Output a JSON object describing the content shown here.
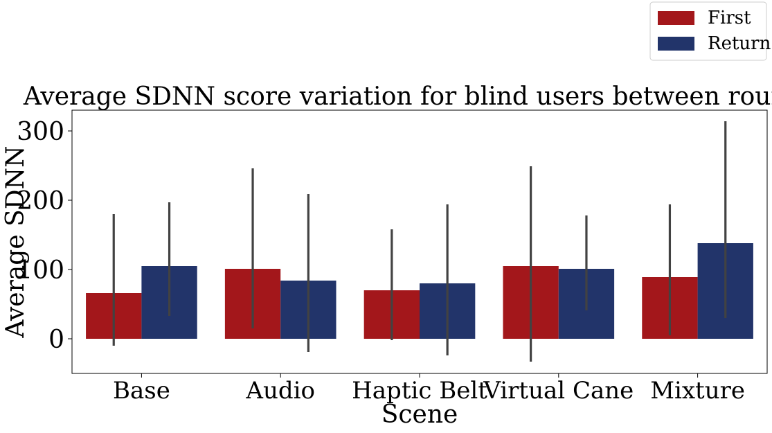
{
  "chart_data": {
    "type": "bar",
    "title": "Average SDNN score variation for blind users between rounds",
    "xlabel": "Scene",
    "ylabel": "Average SDNN",
    "categories": [
      "Base",
      "Audio",
      "Haptic Belt",
      "Virtual Cane",
      "Mixture"
    ],
    "ylim": [
      -50,
      330
    ],
    "yticks": [
      0,
      100,
      200,
      300
    ],
    "grid": false,
    "legend_position": "top-right",
    "series": [
      {
        "name": "First",
        "color": "#a3171b",
        "values": [
          66,
          101,
          70,
          105,
          89
        ],
        "error_low": [
          -10,
          15,
          -2,
          -33,
          5
        ],
        "error_high": [
          180,
          246,
          158,
          249,
          194
        ]
      },
      {
        "name": "Return",
        "color": "#22346a",
        "values": [
          105,
          84,
          80,
          101,
          138
        ],
        "error_low": [
          33,
          -19,
          -24,
          41,
          30
        ],
        "error_high": [
          197,
          209,
          194,
          178,
          314
        ]
      }
    ]
  }
}
